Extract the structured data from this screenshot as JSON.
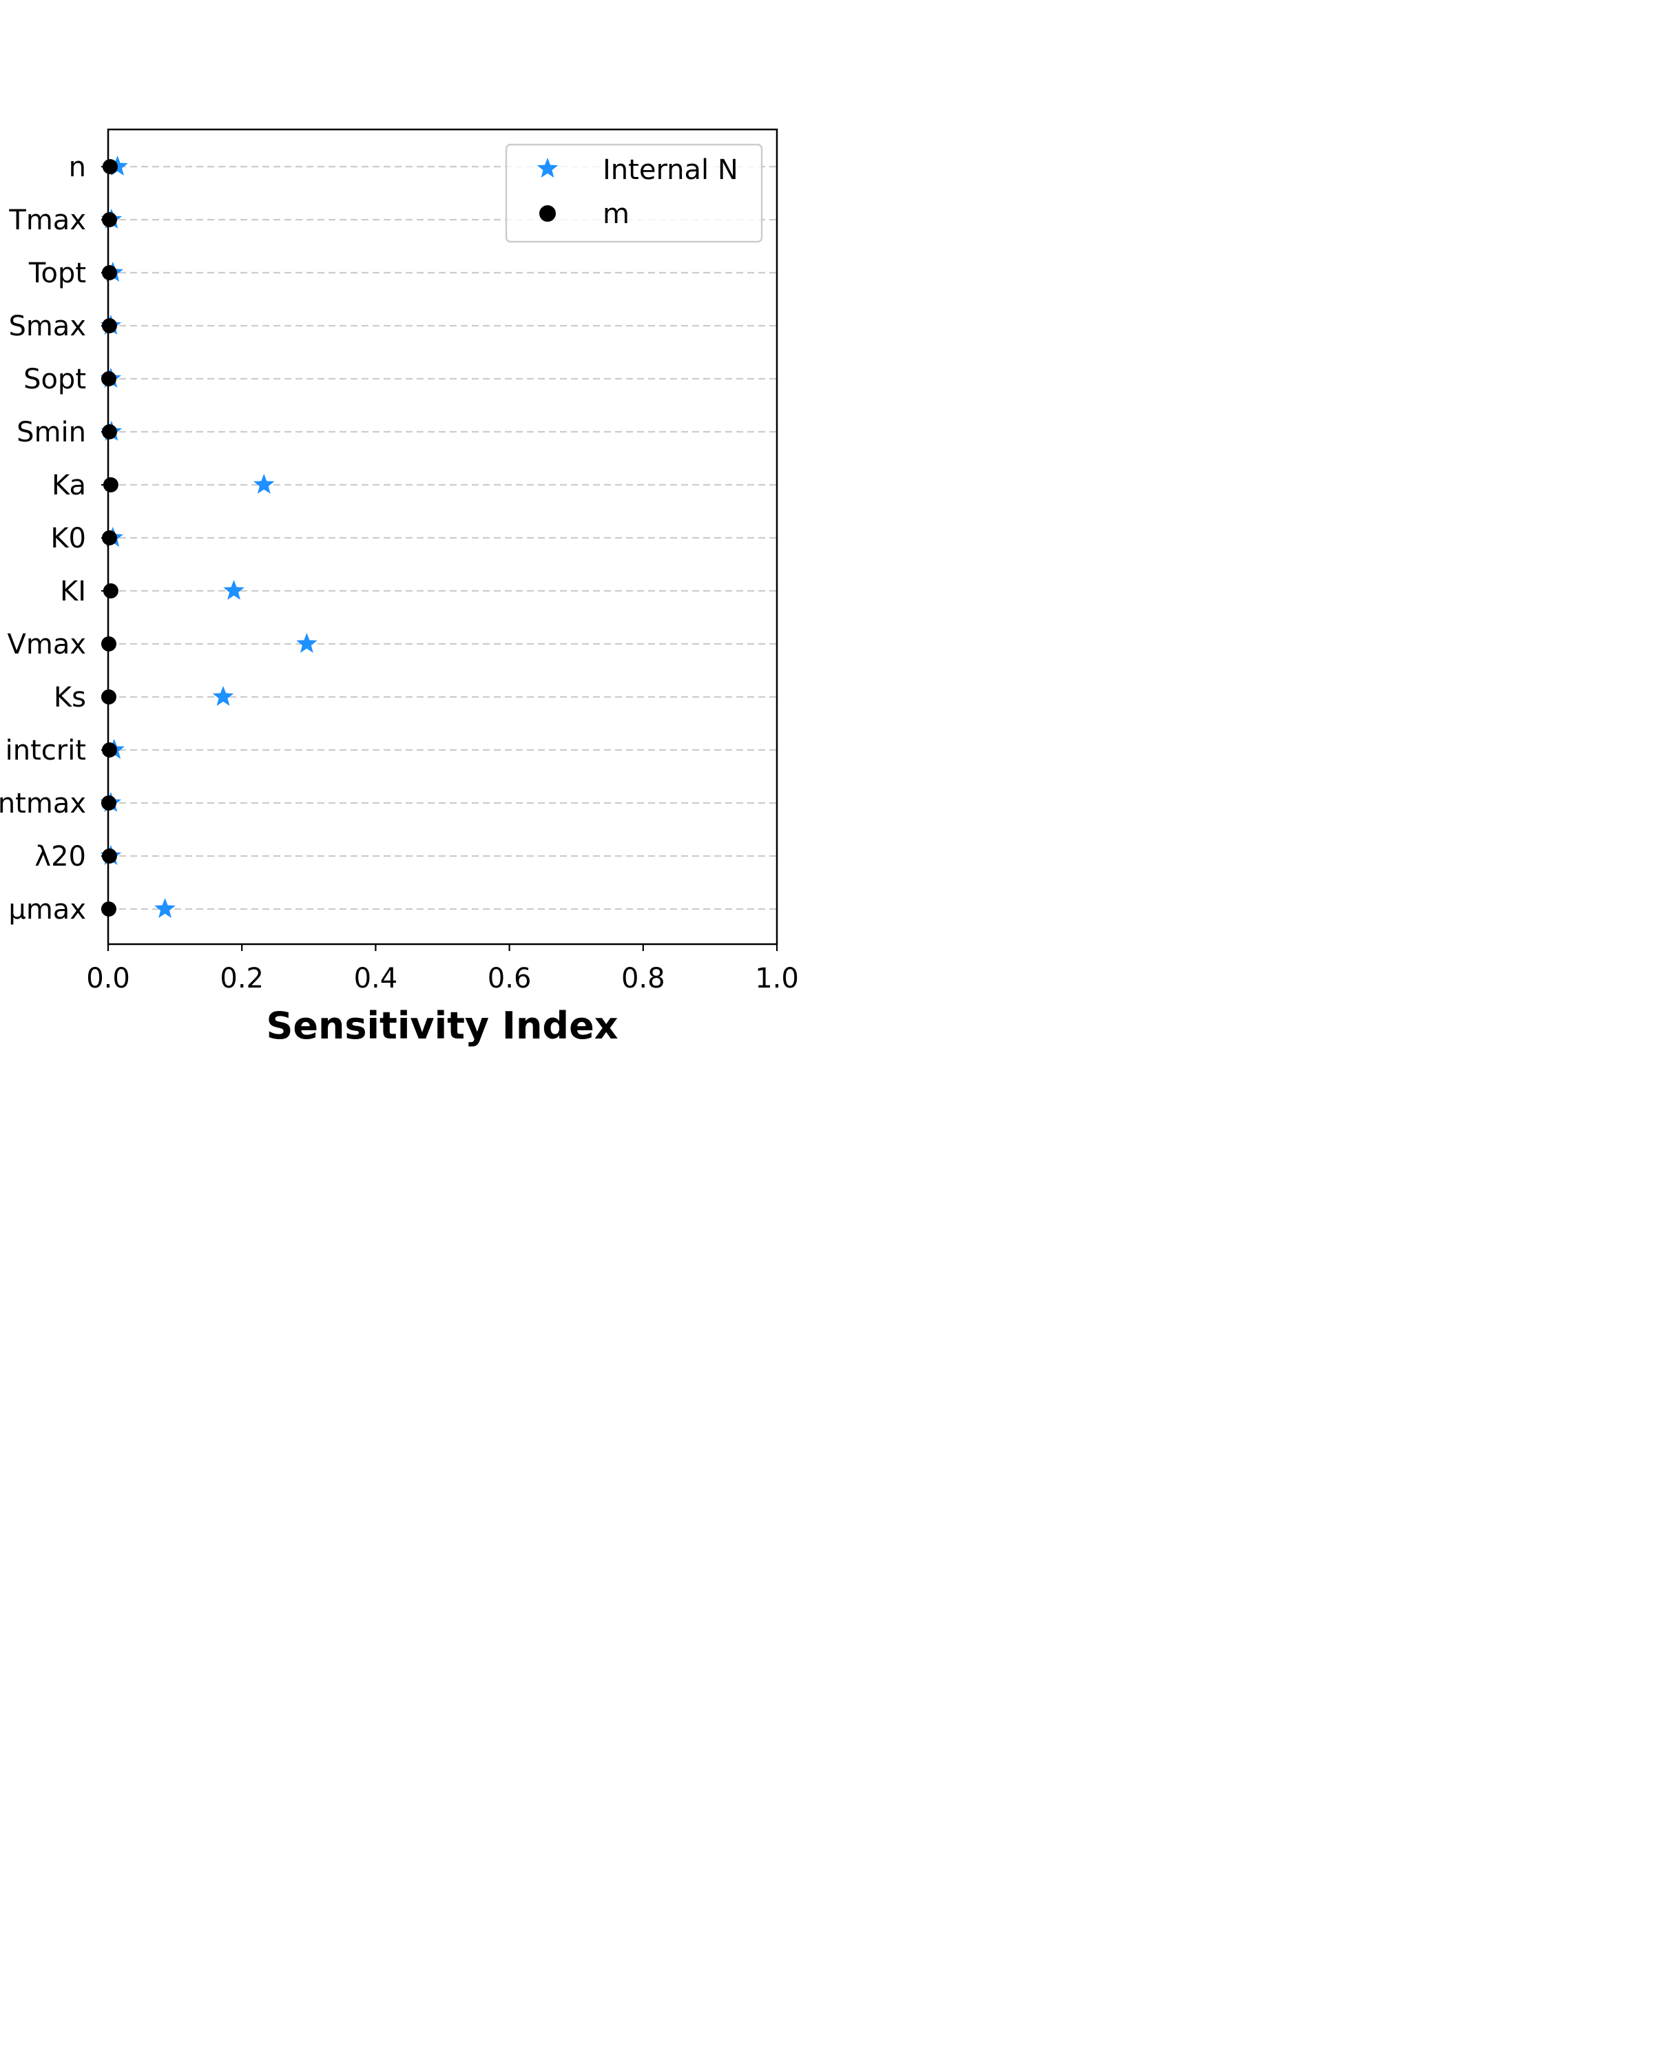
{
  "chart_data": {
    "type": "scatter",
    "orientation": "horizontal",
    "title": "",
    "xlabel": "Sensitivity Index",
    "ylabel": "",
    "xlim": [
      0.0,
      1.0
    ],
    "x_ticks": [
      "0.0",
      "0.2",
      "0.4",
      "0.6",
      "0.8",
      "1.0"
    ],
    "categories": [
      "n",
      "Tmax",
      "Topt",
      "Smax",
      "Sopt",
      "Smin",
      "Ka",
      "K0",
      "KI",
      "Vmax",
      "Ks",
      "intcrit",
      "ntmax",
      "λ20",
      "μmax"
    ],
    "grid": "horizontal dashed",
    "legend_position": "top-right",
    "series": [
      {
        "name": "Internal N",
        "marker": "star",
        "color": "#1e90ff",
        "values": [
          0.014,
          0.005,
          0.007,
          0.004,
          0.004,
          0.005,
          0.233,
          0.007,
          0.188,
          0.297,
          0.172,
          0.009,
          0.004,
          0.004,
          0.085
        ]
      },
      {
        "name": "m",
        "marker": "circle",
        "color": "#000000",
        "values": [
          0.003,
          0.002,
          0.002,
          0.002,
          0.001,
          0.002,
          0.004,
          0.002,
          0.004,
          0.001,
          0.001,
          0.002,
          0.001,
          0.002,
          0.001
        ]
      }
    ]
  }
}
